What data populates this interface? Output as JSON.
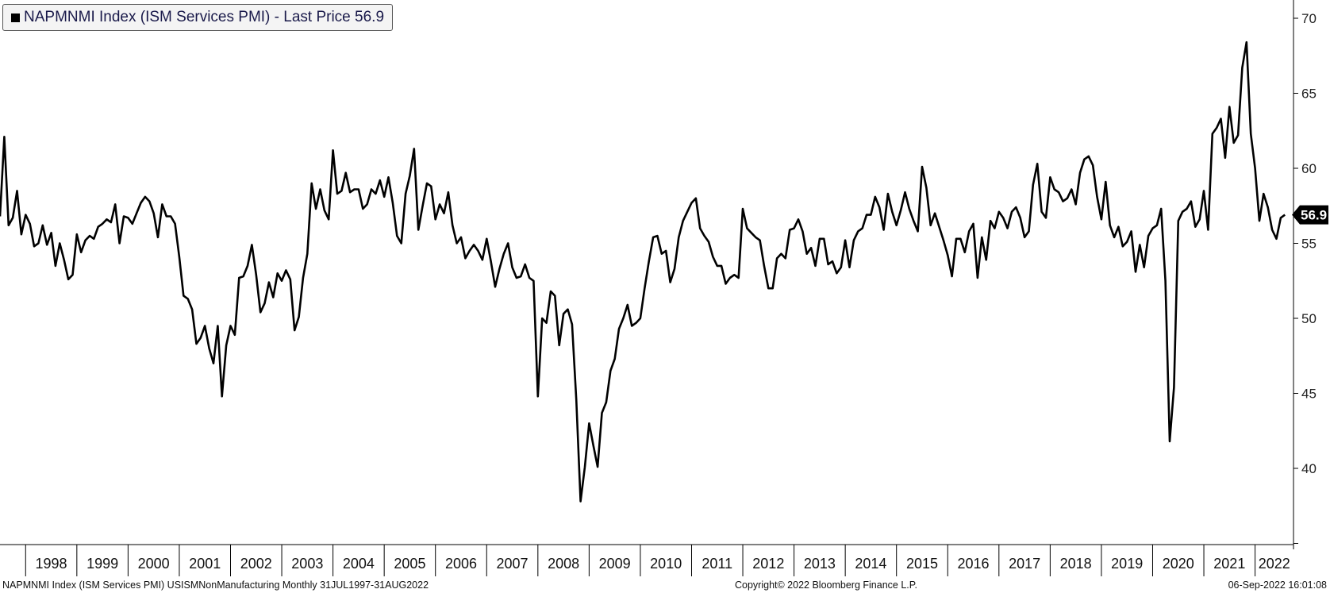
{
  "legend": {
    "label": "NAPMNMI Index (ISM Services PMI) - Last Price 56.9"
  },
  "footer": {
    "left": "NAPMNMI Index (ISM Services PMI) USISMNonManufacturing  Monthly 31JUL1997-31AUG2022",
    "center": "Copyright© 2022 Bloomberg Finance L.P.",
    "right": "06-Sep-2022 16:01:08"
  },
  "colors": {
    "line": "#000000",
    "axis": "#000000",
    "last_label_bg": "#000000"
  },
  "chart_data": {
    "type": "line",
    "title": "NAPMNMI Index (ISM Services PMI) - Last Price 56.9",
    "xlabel": "",
    "ylabel": "",
    "ylim": [
      35,
      71
    ],
    "yticks": [
      40,
      45,
      50,
      55,
      60,
      65,
      70
    ],
    "xlim": [
      "1997-07",
      "2022-10"
    ],
    "xticks": [
      "1998",
      "1999",
      "2000",
      "2001",
      "2002",
      "2003",
      "2004",
      "2005",
      "2006",
      "2007",
      "2008",
      "2009",
      "2010",
      "2011",
      "2012",
      "2013",
      "2014",
      "2015",
      "2016",
      "2017",
      "2018",
      "2019",
      "2020",
      "2021",
      "2022"
    ],
    "y_axis_position": "right",
    "grid": false,
    "last_value_label": "56.9",
    "series": [
      {
        "name": "NAPMNMI Index (ISM Services PMI)",
        "start": "1997-07",
        "frequency": "monthly",
        "values": [
          56.8,
          62.1,
          56.2,
          56.7,
          58.5,
          55.6,
          56.9,
          56.3,
          54.8,
          55.0,
          56.2,
          54.9,
          55.7,
          53.5,
          55.0,
          53.9,
          52.6,
          52.9,
          55.6,
          54.4,
          55.2,
          55.5,
          55.3,
          56.1,
          56.3,
          56.6,
          56.4,
          57.6,
          55.0,
          56.8,
          56.7,
          56.3,
          57.0,
          57.7,
          58.1,
          57.8,
          57.0,
          55.4,
          57.6,
          56.8,
          56.8,
          56.3,
          54.1,
          51.5,
          51.3,
          50.6,
          48.3,
          48.7,
          49.5,
          48.0,
          47.0,
          49.5,
          44.8,
          48.2,
          49.5,
          48.9,
          52.7,
          52.8,
          53.5,
          54.9,
          52.9,
          50.4,
          51.0,
          52.4,
          51.4,
          53.0,
          52.5,
          53.2,
          52.6,
          49.2,
          50.1,
          52.7,
          54.3,
          59.0,
          57.3,
          58.6,
          57.2,
          56.6,
          61.2,
          58.3,
          58.5,
          59.7,
          58.4,
          58.6,
          58.6,
          57.3,
          57.6,
          58.6,
          58.3,
          59.2,
          58.1,
          59.4,
          57.7,
          55.5,
          55.0,
          58.3,
          59.5,
          61.3,
          55.9,
          57.5,
          59.0,
          58.8,
          56.6,
          57.6,
          57.0,
          58.4,
          56.2,
          55.0,
          55.4,
          54.0,
          54.5,
          54.9,
          54.5,
          53.9,
          55.3,
          53.8,
          52.1,
          53.3,
          54.3,
          55.0,
          53.4,
          52.7,
          52.8,
          53.6,
          52.7,
          52.5,
          44.8,
          50.0,
          49.7,
          51.8,
          51.5,
          48.2,
          50.3,
          50.6,
          49.6,
          44.6,
          37.8,
          40.1,
          43.0,
          41.5,
          40.1,
          43.7,
          44.4,
          46.5,
          47.3,
          49.3,
          50.0,
          50.9,
          49.5,
          49.7,
          50.0,
          52.0,
          53.8,
          55.4,
          55.5,
          54.3,
          54.5,
          52.4,
          53.3,
          55.4,
          56.5,
          57.1,
          57.7,
          58.0,
          56.0,
          55.5,
          55.1,
          54.1,
          53.5,
          53.5,
          52.3,
          52.7,
          52.9,
          52.7,
          57.3,
          56.0,
          55.7,
          55.4,
          55.2,
          53.5,
          52.0,
          52.0,
          54.0,
          54.3,
          54.0,
          55.9,
          56.0,
          56.6,
          55.8,
          54.3,
          54.7,
          53.5,
          55.3,
          55.3,
          53.6,
          53.8,
          53.0,
          53.4,
          55.2,
          53.4,
          55.2,
          55.8,
          56.0,
          56.9,
          56.9,
          58.1,
          57.4,
          55.9,
          58.3,
          57.1,
          56.2,
          57.2,
          58.4,
          57.3,
          56.5,
          55.8,
          60.1,
          58.7,
          56.2,
          57.0,
          56.1,
          55.2,
          54.2,
          52.8,
          55.3,
          55.3,
          54.4,
          55.8,
          56.3,
          52.7,
          55.4,
          53.9,
          56.5,
          56.0,
          57.1,
          56.7,
          56.0,
          57.1,
          57.4,
          56.7,
          55.4,
          55.8,
          58.9,
          60.3,
          57.1,
          56.7,
          59.4,
          58.6,
          58.4,
          57.8,
          58.0,
          58.6,
          57.6,
          59.7,
          60.6,
          60.8,
          60.2,
          58.1,
          56.6,
          59.1,
          56.2,
          55.4,
          56.1,
          54.8,
          55.1,
          55.8,
          53.1,
          54.9,
          53.4,
          55.5,
          56.0,
          56.2,
          57.3,
          52.5,
          41.8,
          45.4,
          56.5,
          57.1,
          57.3,
          57.8,
          56.1,
          56.6,
          58.5,
          55.9,
          62.3,
          62.7,
          63.3,
          60.7,
          64.1,
          61.7,
          62.2,
          66.7,
          68.4,
          62.3,
          60.0,
          56.5,
          58.3,
          57.4,
          55.9,
          55.3,
          56.7,
          56.9
        ]
      }
    ]
  }
}
